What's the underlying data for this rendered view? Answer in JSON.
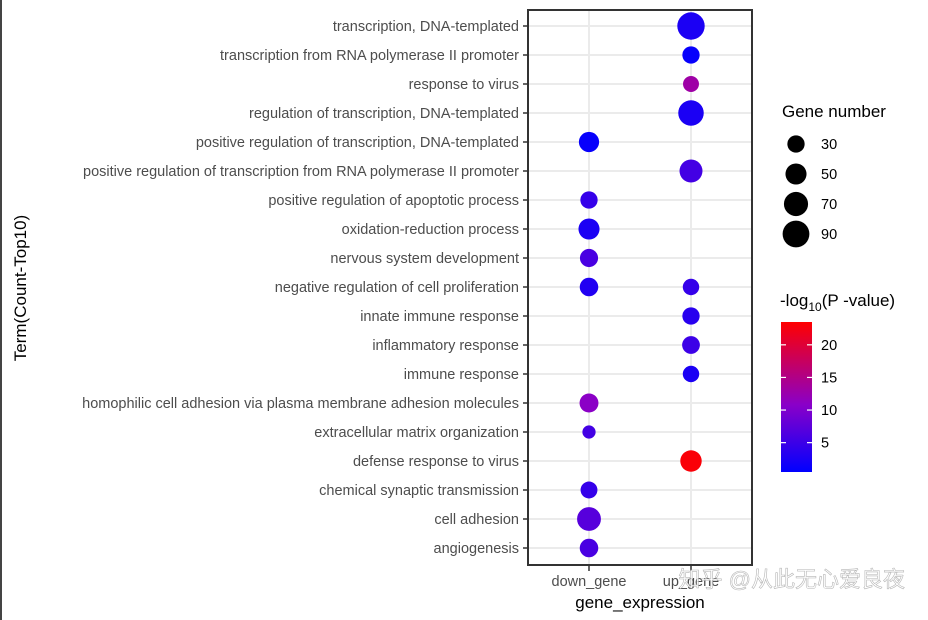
{
  "chart_data": {
    "type": "scatter",
    "subtype": "bubble",
    "xlabel": "gene_expression",
    "ylabel": "Term(Count-Top10)",
    "x_categories": [
      "down_gene",
      "up_gene"
    ],
    "y_categories": [
      "transcription, DNA-templated",
      "transcription from RNA polymerase II promoter",
      "response to virus",
      "regulation of transcription, DNA-templated",
      "positive regulation of transcription, DNA-templated",
      "positive regulation of transcription from RNA polymerase II promoter",
      "positive regulation of apoptotic process",
      "oxidation-reduction process",
      "nervous system development",
      "negative regulation of cell proliferation",
      "innate immune response",
      "inflammatory response",
      "immune response",
      "homophilic cell adhesion via plasma membrane adhesion molecules",
      "extracellular matrix organization",
      "defense response to virus",
      "chemical synaptic transmission",
      "cell adhesion",
      "angiogenesis"
    ],
    "points": [
      {
        "term": "transcription, DNA-templated",
        "group": "up_gene",
        "gene_number": 95,
        "neg_log10_p": 2.5
      },
      {
        "term": "transcription from RNA polymerase II promoter",
        "group": "up_gene",
        "gene_number": 30,
        "neg_log10_p": 1.0
      },
      {
        "term": "response to virus",
        "group": "up_gene",
        "gene_number": 24,
        "neg_log10_p": 13.0
      },
      {
        "term": "regulation of transcription, DNA-templated",
        "group": "up_gene",
        "gene_number": 80,
        "neg_log10_p": 2.5
      },
      {
        "term": "positive regulation of transcription, DNA-templated",
        "group": "down_gene",
        "gene_number": 45,
        "neg_log10_p": 1.0
      },
      {
        "term": "positive regulation of transcription from RNA polymerase II promoter",
        "group": "up_gene",
        "gene_number": 62,
        "neg_log10_p": 5.5
      },
      {
        "term": "positive regulation of apoptotic process",
        "group": "down_gene",
        "gene_number": 30,
        "neg_log10_p": 4.5
      },
      {
        "term": "oxidation-reduction process",
        "group": "down_gene",
        "gene_number": 50,
        "neg_log10_p": 2.5
      },
      {
        "term": "nervous system development",
        "group": "down_gene",
        "gene_number": 34,
        "neg_log10_p": 6.0
      },
      {
        "term": "negative regulation of cell proliferation",
        "group": "down_gene",
        "gene_number": 36,
        "neg_log10_p": 3.0
      },
      {
        "term": "negative regulation of cell proliferation",
        "group": "up_gene",
        "gene_number": 26,
        "neg_log10_p": 4.5
      },
      {
        "term": "innate immune response",
        "group": "up_gene",
        "gene_number": 30,
        "neg_log10_p": 3.5
      },
      {
        "term": "inflammatory response",
        "group": "up_gene",
        "gene_number": 32,
        "neg_log10_p": 5.0
      },
      {
        "term": "immune response",
        "group": "up_gene",
        "gene_number": 26,
        "neg_log10_p": 2.5
      },
      {
        "term": "homophilic cell adhesion via plasma membrane adhesion molecules",
        "group": "down_gene",
        "gene_number": 38,
        "neg_log10_p": 11.0
      },
      {
        "term": "extracellular matrix organization",
        "group": "down_gene",
        "gene_number": 14,
        "neg_log10_p": 5.5
      },
      {
        "term": "defense response to virus",
        "group": "up_gene",
        "gene_number": 52,
        "neg_log10_p": 23.0
      },
      {
        "term": "chemical synaptic transmission",
        "group": "down_gene",
        "gene_number": 28,
        "neg_log10_p": 4.5
      },
      {
        "term": "cell adhesion",
        "group": "down_gene",
        "gene_number": 68,
        "neg_log10_p": 7.0
      },
      {
        "term": "angiogenesis",
        "group": "down_gene",
        "gene_number": 36,
        "neg_log10_p": 6.0
      }
    ],
    "size_legend": {
      "title": "Gene number",
      "values": [
        30,
        50,
        70,
        90
      ],
      "labels": [
        "30",
        "50",
        "70",
        "90"
      ]
    },
    "color_legend": {
      "title_pre": "-log",
      "title_sub": "10",
      "title_post": "(P -value)",
      "range": [
        0.5,
        23.5
      ],
      "ticks": [
        5,
        10,
        15,
        20
      ],
      "tick_labels": [
        "5",
        "10",
        "15",
        "20"
      ],
      "low_color": "#0000ff",
      "high_color": "#ff0000"
    },
    "grid": true
  },
  "watermark": "知乎 @从此无心爱良夜"
}
